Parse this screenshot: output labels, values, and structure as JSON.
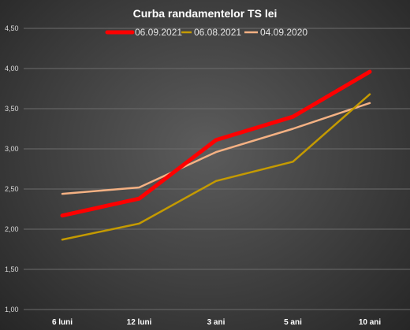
{
  "chart_data": {
    "type": "line",
    "title": "Curba  randamentelor  TS  lei",
    "categories": [
      "6 luni",
      "12 luni",
      "3 ani",
      "5 ani",
      "10 ani"
    ],
    "ylim": [
      1.0,
      4.5
    ],
    "yticks": [
      "1,00",
      "1,50",
      "2,00",
      "2,50",
      "3,00",
      "3,50",
      "4,00",
      "4,50"
    ],
    "ytick_values": [
      1.0,
      1.5,
      2.0,
      2.5,
      3.0,
      3.5,
      4.0,
      4.5
    ],
    "grid": true,
    "legend_position": "top",
    "series": [
      {
        "name": "06.09.2021",
        "color": "#ff0000",
        "values": [
          2.17,
          2.38,
          3.11,
          3.4,
          3.96
        ]
      },
      {
        "name": "06.08.2021",
        "color": "#c49a00",
        "values": [
          1.87,
          2.07,
          2.6,
          2.84,
          3.68
        ]
      },
      {
        "name": "04.09.2020",
        "color": "#f4b183",
        "values": [
          2.44,
          2.52,
          2.96,
          3.25,
          3.57
        ]
      }
    ]
  }
}
